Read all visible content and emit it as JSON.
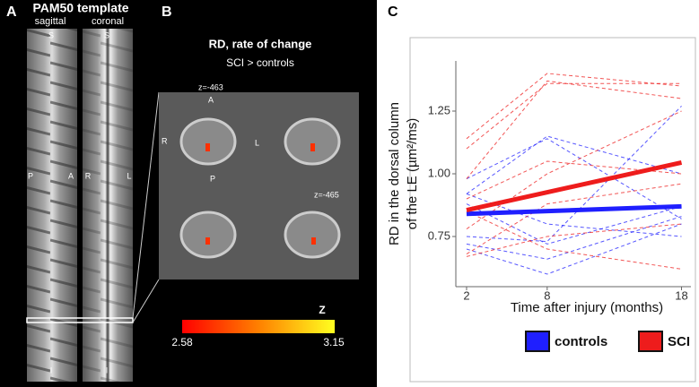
{
  "panel_a": {
    "letter": "A",
    "title": "PAM50 template",
    "views": [
      "sagittal",
      "coronal"
    ],
    "orientation": {
      "sagittal": [
        "S",
        "P",
        "A",
        "I"
      ],
      "coronal": [
        "S",
        "R",
        "L",
        "I"
      ]
    }
  },
  "panel_b": {
    "letter": "B",
    "title": "RD, rate of change",
    "subtitle": "SCI > controls",
    "slices": [
      "z=-463",
      "z=-465"
    ],
    "orientation": [
      "A",
      "R",
      "L",
      "P"
    ],
    "colorbar": {
      "label": "Z",
      "min": 2.58,
      "max": 3.15
    }
  },
  "chart_data": {
    "letter": "C",
    "type": "line",
    "xlabel": "Time after injury (months)",
    "ylabel": [
      "RD in the dorsal column",
      "of the LE (µm²/ms)"
    ],
    "x": [
      2,
      18
    ],
    "x_subjects": [
      2,
      8,
      18
    ],
    "xlim": [
      1.2,
      18.7
    ],
    "ylim": [
      0.55,
      1.45
    ],
    "xticks": [
      2,
      8,
      18
    ],
    "yticks": [
      0.75,
      {
        "value": 1,
        "label": "1.00"
      },
      1.25
    ],
    "series": [
      {
        "name": "controls",
        "color": "#1f1fff",
        "values": [
          0.84,
          0.87
        ],
        "subjects": [
          [
            0.98,
            1.14,
            0.82
          ],
          [
            0.92,
            1.15,
            1.0
          ],
          [
            0.75,
            0.73,
            1.27
          ],
          [
            0.7,
            0.6,
            0.8
          ],
          [
            0.88,
            0.72,
            0.87
          ],
          [
            0.72,
            0.66,
            0.83
          ],
          [
            0.92,
            0.8,
            0.75
          ]
        ]
      },
      {
        "name": "SCI",
        "color": "#ee1c1c",
        "values": [
          0.855,
          1.045
        ],
        "subjects": [
          [
            1.14,
            1.4,
            1.35
          ],
          [
            1.1,
            1.36,
            1.36
          ],
          [
            0.98,
            1.37,
            1.3
          ],
          [
            0.9,
            1.05,
            1.0
          ],
          [
            0.68,
            0.88,
            0.96
          ],
          [
            0.67,
            0.75,
            0.8
          ],
          [
            0.85,
            0.7,
            0.62
          ],
          [
            0.78,
            1.0,
            1.25
          ]
        ]
      }
    ]
  }
}
